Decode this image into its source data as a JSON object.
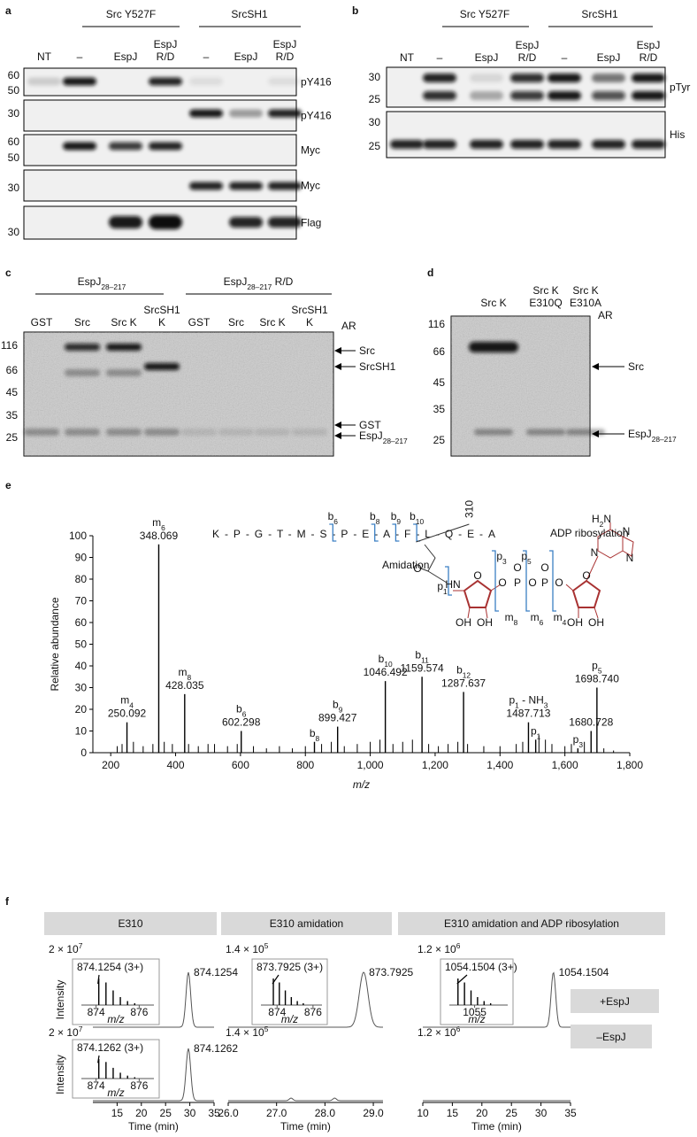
{
  "panel_a": {
    "label": "a",
    "groups": [
      "Src Y527F",
      "SrcSH1"
    ],
    "lanes": [
      [
        "NT"
      ],
      [
        "–"
      ],
      [
        "EspJ"
      ],
      [
        "EspJ",
        "R/D"
      ],
      [
        "–"
      ],
      [
        "EspJ"
      ],
      [
        "EspJ",
        "R/D"
      ]
    ],
    "blots": [
      {
        "label": "pY416",
        "markers": [
          60,
          50
        ]
      },
      {
        "label": "pY416",
        "markers": [
          30
        ]
      },
      {
        "label": "Myc",
        "markers": [
          60,
          50
        ]
      },
      {
        "label": "Myc",
        "markers": [
          30
        ]
      },
      {
        "label": "Flag",
        "markers": [
          30
        ]
      }
    ]
  },
  "panel_b": {
    "label": "b",
    "groups": [
      "Src Y527F",
      "SrcSH1"
    ],
    "lanes": [
      [
        "NT"
      ],
      [
        "–"
      ],
      [
        "EspJ"
      ],
      [
        "EspJ",
        "R/D"
      ],
      [
        "–"
      ],
      [
        "EspJ"
      ],
      [
        "EspJ",
        "R/D"
      ]
    ],
    "blots": [
      {
        "label": "pTyr",
        "markers": [
          30,
          25
        ]
      },
      {
        "label": "His",
        "markers": [
          30,
          25
        ]
      }
    ]
  },
  "panel_c": {
    "label": "c",
    "groups": [
      {
        "sub": [
          "EspJ",
          "28–217"
        ]
      },
      {
        "sub": [
          "EspJ",
          "28–217",
          " R/D"
        ]
      }
    ],
    "lanes": [
      [
        "GST"
      ],
      [
        "Src"
      ],
      [
        "Src K"
      ],
      [
        "SrcSH1",
        "K"
      ],
      [
        "GST"
      ],
      [
        "Src"
      ],
      [
        "Src K"
      ],
      [
        "SrcSH1",
        "K"
      ]
    ],
    "ar": "AR",
    "markers": [
      116,
      66,
      45,
      35,
      25
    ],
    "arrows": [
      {
        "sub": [
          "Src"
        ]
      },
      {
        "sub": [
          "SrcSH1"
        ]
      },
      {
        "sub": [
          "GST"
        ]
      },
      {
        "sub": [
          "EspJ",
          "28–217"
        ]
      }
    ]
  },
  "panel_d": {
    "label": "d",
    "lanes": [
      [
        "Src K"
      ],
      [
        "Src K",
        "E310Q"
      ],
      [
        "Src K",
        "E310A"
      ]
    ],
    "ar": "AR",
    "markers": [
      116,
      66,
      45,
      35,
      25
    ],
    "arrows": [
      {
        "sub": [
          "Src"
        ]
      },
      {
        "sub": [
          "EspJ",
          "28–217"
        ]
      }
    ]
  },
  "panel_e": {
    "label": "e",
    "sequence": "K-P-G-T-M-S-P-E-A-F-L-Q-E-A",
    "residue": "310",
    "cleavages": [
      {
        "sub": [
          "b",
          "6"
        ]
      },
      {
        "sub": [
          "b",
          "8"
        ]
      },
      {
        "sub": [
          "b",
          "9"
        ]
      },
      {
        "sub": [
          "b",
          "10"
        ]
      }
    ],
    "amidation": "Amidation",
    "adp": "ADP ribosylation",
    "fragments": [
      {
        "sub": [
          "p",
          "1"
        ]
      },
      {
        "sub": [
          "p",
          "3"
        ]
      },
      {
        "sub": [
          "p",
          "5"
        ]
      },
      {
        "sub": [
          "m",
          "8"
        ]
      },
      {
        "sub": [
          "m",
          "6"
        ]
      },
      {
        "sub": [
          "m",
          "4"
        ]
      }
    ],
    "chem": [
      "O",
      "HN",
      "O",
      "O",
      "P",
      "O",
      "O",
      "P",
      "O",
      "O",
      "O",
      "OH",
      "OH",
      "OH",
      "OH",
      "N",
      "N",
      "N",
      {
        "sub": [
          "H",
          "2",
          "N"
        ]
      }
    ]
  },
  "chart_data": {
    "type": "stem",
    "xlabel": "m/z",
    "ylabel": "Relative abundance",
    "color": "#000000",
    "xlim": [
      145,
      1800
    ],
    "ylim": [
      0,
      100
    ],
    "xticks": [
      200,
      400,
      600,
      800,
      {
        "value": 1000,
        "label": "1,000"
      },
      {
        "value": 1200,
        "label": "1,200"
      },
      {
        "value": 1400,
        "label": "1,400"
      },
      {
        "value": 1600,
        "label": "1,600"
      },
      {
        "value": 1800,
        "label": "1,800"
      }
    ],
    "yticks": [
      0,
      10,
      20,
      30,
      40,
      50,
      60,
      70,
      80,
      90,
      100
    ],
    "x": [
      220,
      235,
      270,
      300,
      330,
      365,
      390,
      440,
      470,
      500,
      520,
      560,
      590,
      640,
      680,
      720,
      760,
      800,
      850,
      880,
      920,
      960,
      1000,
      1030,
      1070,
      1100,
      1130,
      1180,
      1210,
      1240,
      1270,
      1300,
      1350,
      1400,
      1450,
      1470,
      1520,
      1540,
      1560,
      1600,
      1620,
      1660,
      1720,
      1750
    ],
    "values": [
      3,
      4,
      5,
      3,
      4,
      5,
      4,
      4,
      3,
      4,
      4,
      3,
      4,
      3,
      2,
      3,
      2,
      3,
      4,
      5,
      3,
      4,
      5,
      6,
      4,
      5,
      6,
      4,
      3,
      4,
      5,
      4,
      3,
      3,
      4,
      5,
      8,
      6,
      4,
      3,
      4,
      5,
      2,
      1
    ],
    "peaks": [
      {
        "x": 250.092,
        "value": 14,
        "label": "250.092",
        "ion": {
          "sub": [
            "m",
            "4"
          ]
        },
        "color": "#a83232"
      },
      {
        "x": 348.069,
        "value": 96,
        "label": "348.069",
        "ion": {
          "sub": [
            "m",
            "6"
          ]
        },
        "color": "#a83232"
      },
      {
        "x": 428.035,
        "value": 27,
        "label": "428.035",
        "ion": {
          "sub": [
            "m",
            "8"
          ]
        },
        "color": "#a83232"
      },
      {
        "x": 602.298,
        "value": 10,
        "label": "602.298",
        "ion": {
          "sub": [
            "b",
            "6"
          ]
        },
        "color": "#000000"
      },
      {
        "x": 828,
        "value": 5,
        "label": null,
        "ion": {
          "sub": [
            "b",
            "8"
          ]
        },
        "color": "#000000"
      },
      {
        "x": 899.427,
        "value": 12,
        "label": "899.427",
        "ion": {
          "sub": [
            "b",
            "9"
          ]
        },
        "color": "#000000"
      },
      {
        "x": 1046.492,
        "value": 33,
        "label": "1046.492",
        "ion": {
          "sub": [
            "b",
            "10"
          ]
        },
        "color": "#000000"
      },
      {
        "x": 1159.574,
        "value": 35,
        "label": "1159.574",
        "ion": {
          "sub": [
            "b",
            "11"
          ]
        },
        "color": "#000000"
      },
      {
        "x": 1287.637,
        "value": 28,
        "label": "1287.637",
        "ion": {
          "sub": [
            "b",
            "12"
          ]
        },
        "color": "#000000"
      },
      {
        "x": 1487.713,
        "value": 14,
        "label": "1487.713",
        "ion": {
          "sub": [
            "p",
            "1",
            " - NH",
            "3"
          ]
        },
        "color": "#2aa84a"
      },
      {
        "x": 1510,
        "value": 6,
        "label": null,
        "ion": {
          "sub": [
            "p",
            "1"
          ]
        },
        "color": "#2aa84a"
      },
      {
        "x": 1640,
        "value": 2,
        "label": null,
        "ion": {
          "sub": [
            "p",
            "3"
          ]
        },
        "color": "#2aa84a"
      },
      {
        "x": 1680.728,
        "value": 10,
        "label": "1680.728",
        "ion": null,
        "color": "#000000"
      },
      {
        "x": 1698.74,
        "value": 30,
        "label": "1698.740",
        "ion": {
          "sub": [
            "p",
            "5"
          ]
        },
        "color": "#2aa84a"
      }
    ]
  },
  "panel_f": {
    "label": "f",
    "ylabel": "Intensity",
    "xlabel": "Time (min)",
    "inset_xlabel": "m/z",
    "conditions": [
      "+EspJ",
      "–EspJ"
    ],
    "columns": [
      {
        "title": "E310",
        "xlim": [
          10,
          35
        ],
        "xticks": [
          15,
          20,
          25,
          30,
          35
        ],
        "scales": [
          {
            "sup": [
              "2 × 10",
              "7"
            ]
          },
          {
            "sup": [
              "2 × 10",
              "7"
            ]
          }
        ],
        "peaks": [
          "874.1254",
          "874.1262"
        ],
        "retention": [
          29.7,
          29.7
        ],
        "inset_xlim": [
          873.4,
          876.6
        ],
        "insets": [
          {
            "title": "874.1254 (3+)",
            "ticks": [
              874,
              876
            ]
          },
          {
            "title": "874.1262 (3+)",
            "ticks": [
              874,
              876
            ]
          }
        ]
      },
      {
        "title": "E310 amidation",
        "xlim": [
          26,
          29.2
        ],
        "xticks": [
          {
            "value": 26,
            "label": "26.0"
          },
          {
            "value": 27,
            "label": "27.0"
          },
          {
            "value": 28,
            "label": "28.0"
          },
          {
            "value": 29,
            "label": "29.0"
          }
        ],
        "scales": [
          {
            "sup": [
              "1.4 × 10",
              "5"
            ]
          },
          {
            "sup": [
              "1.4 × 10",
              "5"
            ]
          }
        ],
        "peaks": [
          "873.7925",
          null
        ],
        "retention": [
          28.8,
          null
        ],
        "inset_xlim": [
          873.2,
          876.4
        ],
        "insets": [
          {
            "title": "873.7925 (3+)",
            "ticks": [
              874,
              876
            ]
          },
          null
        ]
      },
      {
        "title": "E310 amidation and ADP ribosylation",
        "xlim": [
          10,
          35
        ],
        "xticks": [
          10,
          15,
          20,
          25,
          30,
          35
        ],
        "scales": [
          {
            "sup": [
              "1.2 × 10",
              "6"
            ]
          },
          {
            "sup": [
              "1.2 × 10",
              "6"
            ]
          }
        ],
        "peaks": [
          "1054.1504",
          null
        ],
        "retention": [
          32.1,
          null
        ],
        "inset_xlim": [
          1053.8,
          1056.6
        ],
        "insets": [
          {
            "title": "1054.1504 (3+)",
            "ticks": [
              1055
            ]
          },
          null
        ]
      }
    ]
  }
}
